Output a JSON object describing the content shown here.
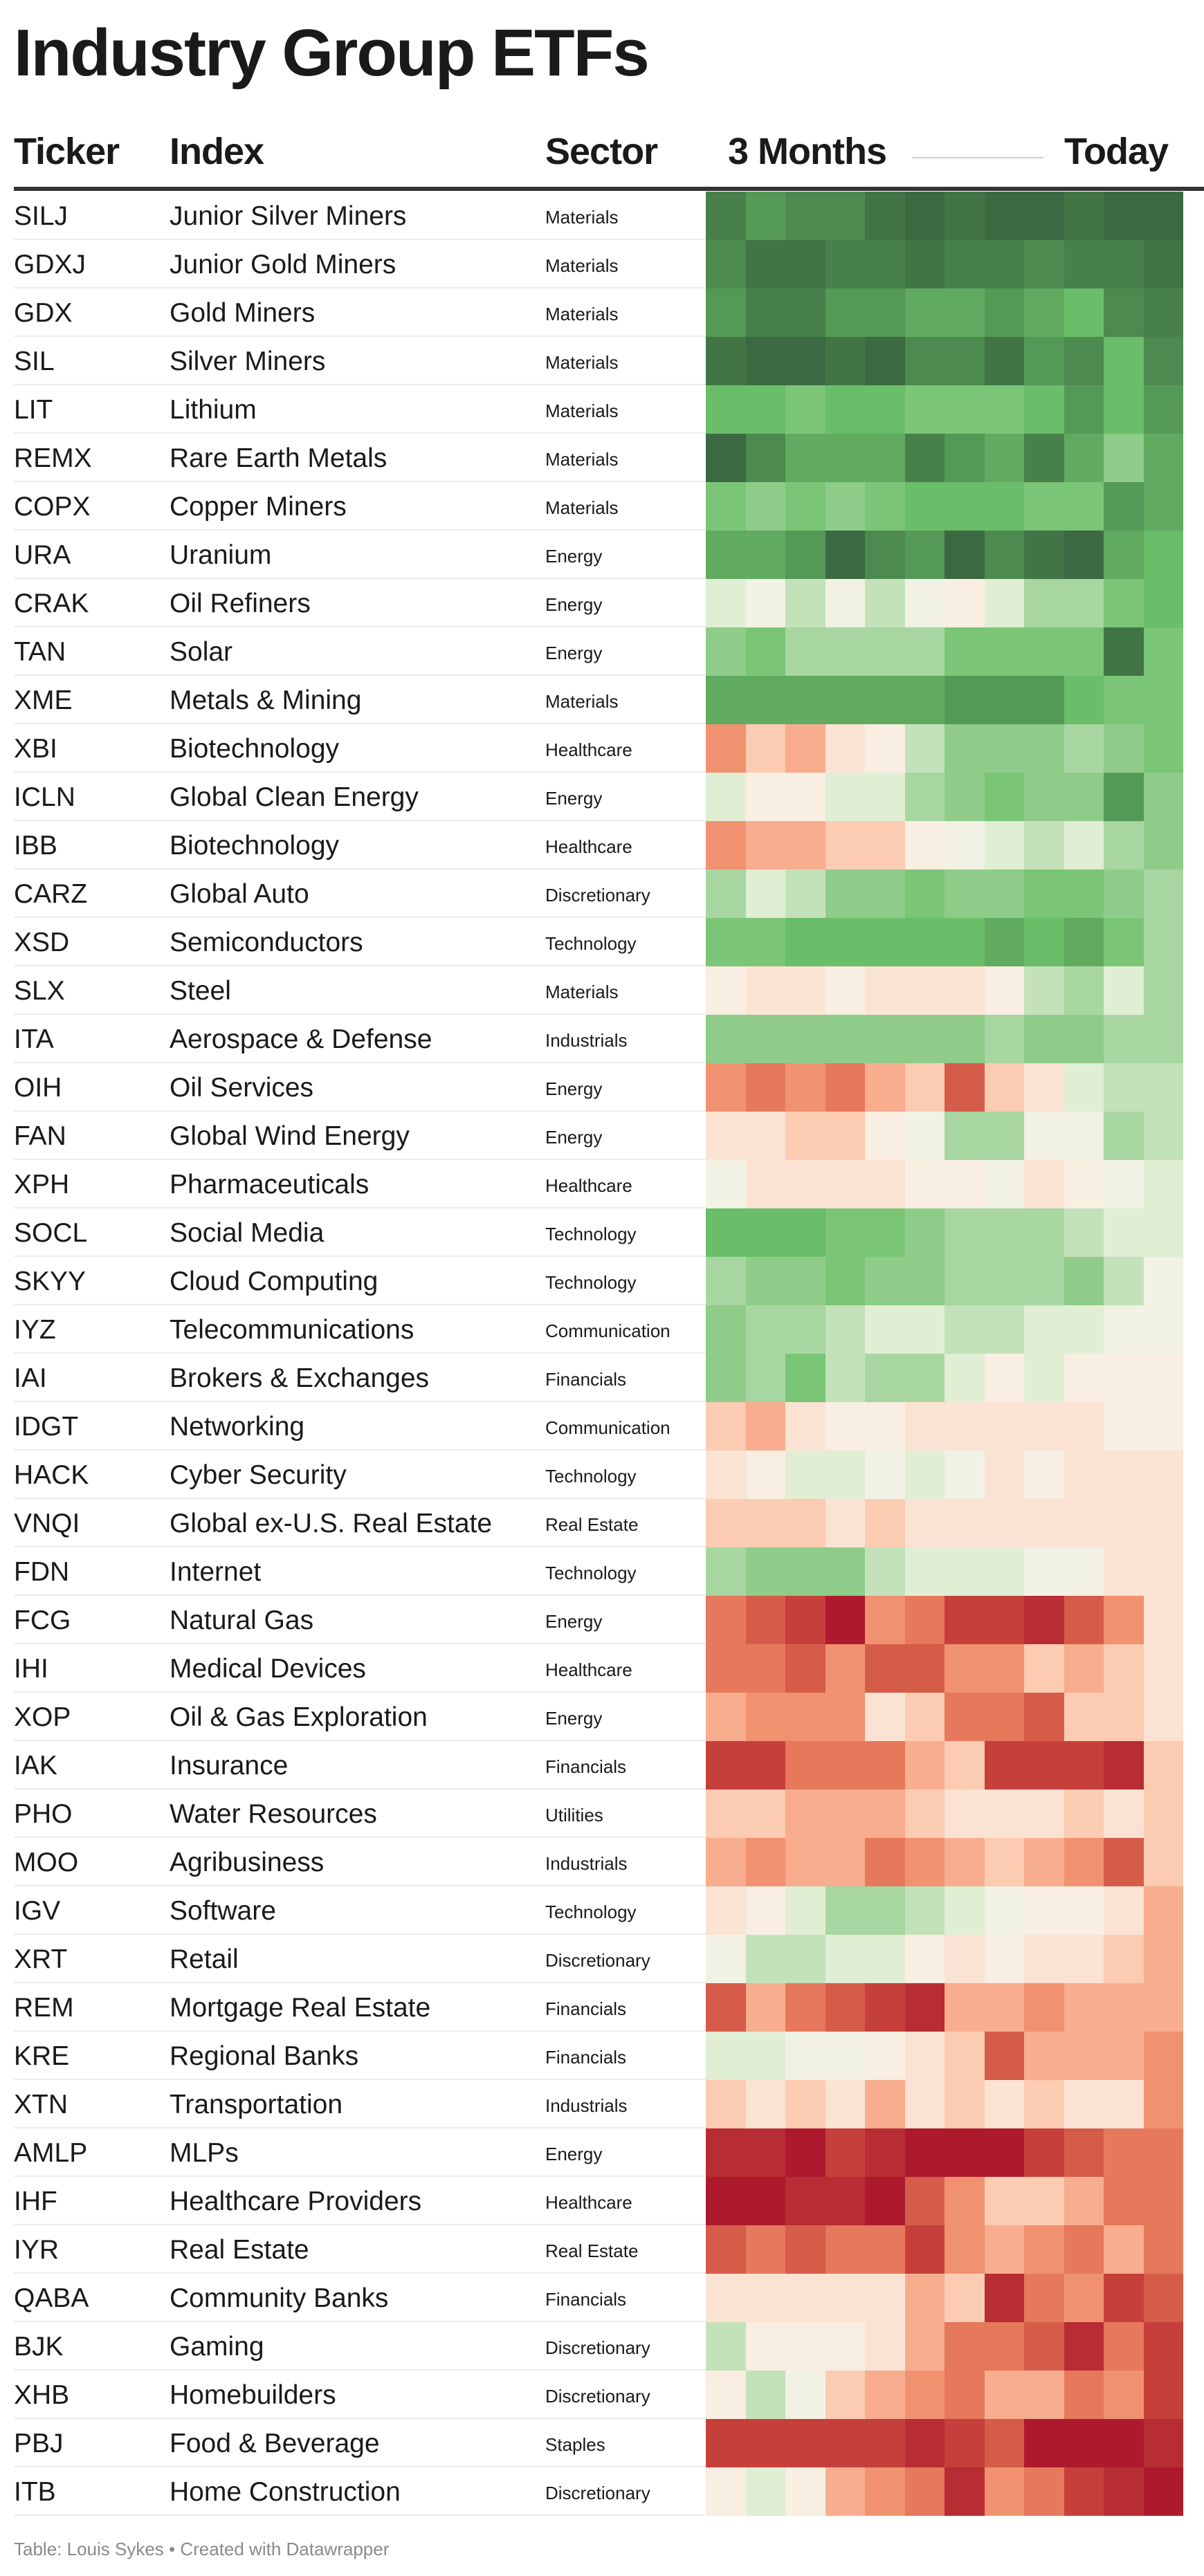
{
  "title": "Industry Group ETFs",
  "headers": {
    "ticker": "Ticker",
    "index": "Index",
    "sector": "Sector",
    "start": "3 Months",
    "end": "Today"
  },
  "footer": "Table: Louis Sykes • Created with Datawrapper",
  "chart_data": {
    "type": "heatmap",
    "title": "Industry Group ETFs",
    "x_range_label": [
      "3 Months",
      "Today"
    ],
    "periods": 12,
    "scale": "relative strength level, -12 (strong red) to 10 (strong green)",
    "palette": {
      "-12": "#ad1a2d",
      "-11": "#b72d33",
      "-10": "#c6403b",
      "-9": "#d65c4a",
      "-8": "#e6785c",
      "-7": "#f09270",
      "-6": "#f7ad8e",
      "-5": "#fbcbb2",
      "-4": "#fbe3d3",
      "-3": "#f8eee1",
      "-2": "#f1f2e3",
      "-1": "#e0eed4",
      "0": "#c4e2ba",
      "1": "#a8d6a1",
      "2": "#8fcc89",
      "3": "#7bc577",
      "4": "#6abd69",
      "5": "#60ab60",
      "6": "#559956",
      "7": "#4d8a4f",
      "8": "#47804b",
      "9": "#417545",
      "10": "#3b6a42"
    },
    "rows": [
      {
        "ticker": "SILJ",
        "index": "Junior Silver Miners",
        "sector": "Materials",
        "values": [
          8,
          6,
          7,
          7,
          9,
          10,
          9,
          10,
          10,
          9,
          10,
          10
        ]
      },
      {
        "ticker": "GDXJ",
        "index": "Junior Gold Miners",
        "sector": "Materials",
        "values": [
          7,
          9,
          9,
          8,
          8,
          9,
          8,
          8,
          7,
          8,
          8,
          9
        ]
      },
      {
        "ticker": "GDX",
        "index": "Gold Miners",
        "sector": "Materials",
        "values": [
          6,
          8,
          8,
          6,
          6,
          5,
          5,
          6,
          5,
          4,
          7,
          8
        ]
      },
      {
        "ticker": "SIL",
        "index": "Silver Miners",
        "sector": "Materials",
        "values": [
          9,
          10,
          10,
          9,
          10,
          7,
          7,
          9,
          6,
          7,
          4,
          7
        ]
      },
      {
        "ticker": "LIT",
        "index": "Lithium",
        "sector": "Materials",
        "values": [
          4,
          4,
          3,
          4,
          4,
          3,
          3,
          3,
          4,
          6,
          4,
          6
        ]
      },
      {
        "ticker": "REMX",
        "index": "Rare Earth Metals",
        "sector": "Materials",
        "values": [
          10,
          7,
          5,
          5,
          5,
          8,
          6,
          5,
          8,
          5,
          2,
          5
        ]
      },
      {
        "ticker": "COPX",
        "index": "Copper Miners",
        "sector": "Materials",
        "values": [
          3,
          2,
          3,
          2,
          3,
          4,
          4,
          4,
          3,
          3,
          6,
          5
        ]
      },
      {
        "ticker": "URA",
        "index": "Uranium",
        "sector": "Energy",
        "values": [
          5,
          5,
          6,
          10,
          7,
          6,
          10,
          7,
          9,
          10,
          5,
          4
        ]
      },
      {
        "ticker": "CRAK",
        "index": "Oil Refiners",
        "sector": "Energy",
        "values": [
          -1,
          -2,
          0,
          -2,
          0,
          -2,
          -3,
          -1,
          1,
          1,
          3,
          4
        ]
      },
      {
        "ticker": "TAN",
        "index": "Solar",
        "sector": "Energy",
        "values": [
          2,
          3,
          1,
          1,
          1,
          1,
          3,
          3,
          3,
          3,
          9,
          3
        ]
      },
      {
        "ticker": "XME",
        "index": "Metals & Mining",
        "sector": "Materials",
        "values": [
          5,
          5,
          5,
          5,
          5,
          5,
          6,
          6,
          6,
          4,
          3,
          3
        ]
      },
      {
        "ticker": "XBI",
        "index": "Biotechnology",
        "sector": "Healthcare",
        "values": [
          -7,
          -5,
          -6,
          -4,
          -3,
          0,
          2,
          2,
          2,
          1,
          2,
          3
        ]
      },
      {
        "ticker": "ICLN",
        "index": "Global Clean Energy",
        "sector": "Energy",
        "values": [
          -1,
          -3,
          -3,
          -1,
          -1,
          1,
          2,
          3,
          2,
          2,
          6,
          2
        ]
      },
      {
        "ticker": "IBB",
        "index": "Biotechnology",
        "sector": "Healthcare",
        "values": [
          -7,
          -6,
          -6,
          -5,
          -5,
          -3,
          -2,
          -1,
          0,
          -1,
          1,
          2
        ]
      },
      {
        "ticker": "CARZ",
        "index": "Global Auto",
        "sector": "Discretionary",
        "values": [
          1,
          -1,
          0,
          2,
          2,
          3,
          2,
          2,
          3,
          3,
          2,
          1
        ]
      },
      {
        "ticker": "XSD",
        "index": "Semiconductors",
        "sector": "Technology",
        "values": [
          3,
          3,
          4,
          4,
          4,
          4,
          4,
          5,
          4,
          5,
          3,
          1
        ]
      },
      {
        "ticker": "SLX",
        "index": "Steel",
        "sector": "Materials",
        "values": [
          -3,
          -4,
          -4,
          -3,
          -4,
          -4,
          -4,
          -3,
          0,
          1,
          -1,
          1
        ]
      },
      {
        "ticker": "ITA",
        "index": "Aerospace & Defense",
        "sector": "Industrials",
        "values": [
          2,
          2,
          2,
          2,
          2,
          2,
          2,
          1,
          2,
          2,
          1,
          1
        ]
      },
      {
        "ticker": "OIH",
        "index": "Oil Services",
        "sector": "Energy",
        "values": [
          -7,
          -8,
          -7,
          -8,
          -6,
          -5,
          -9,
          -5,
          -4,
          -1,
          0,
          0
        ]
      },
      {
        "ticker": "FAN",
        "index": "Global Wind Energy",
        "sector": "Energy",
        "values": [
          -4,
          -4,
          -5,
          -5,
          -3,
          -2,
          1,
          1,
          -2,
          -2,
          1,
          0
        ]
      },
      {
        "ticker": "XPH",
        "index": "Pharmaceuticals",
        "sector": "Healthcare",
        "values": [
          -2,
          -4,
          -4,
          -4,
          -4,
          -3,
          -3,
          -2,
          -4,
          -3,
          -2,
          -1
        ]
      },
      {
        "ticker": "SOCL",
        "index": "Social Media",
        "sector": "Technology",
        "values": [
          4,
          4,
          4,
          3,
          3,
          2,
          1,
          1,
          1,
          0,
          -1,
          -1
        ]
      },
      {
        "ticker": "SKYY",
        "index": "Cloud Computing",
        "sector": "Technology",
        "values": [
          1,
          2,
          2,
          3,
          2,
          2,
          1,
          1,
          1,
          2,
          0,
          -2
        ]
      },
      {
        "ticker": "IYZ",
        "index": "Telecommunications",
        "sector": "Communication",
        "values": [
          2,
          1,
          1,
          0,
          -1,
          -1,
          0,
          0,
          -1,
          -1,
          -2,
          -2
        ]
      },
      {
        "ticker": "IAI",
        "index": "Brokers & Exchanges",
        "sector": "Financials",
        "values": [
          2,
          1,
          3,
          0,
          1,
          1,
          -1,
          -3,
          -1,
          -3,
          -3,
          -3
        ]
      },
      {
        "ticker": "IDGT",
        "index": "Networking",
        "sector": "Communication",
        "values": [
          -5,
          -6,
          -4,
          -3,
          -3,
          -4,
          -4,
          -4,
          -4,
          -4,
          -3,
          -3
        ]
      },
      {
        "ticker": "HACK",
        "index": "Cyber Security",
        "sector": "Technology",
        "values": [
          -4,
          -3,
          -1,
          -1,
          -2,
          -1,
          -2,
          -4,
          -3,
          -4,
          -4,
          -4
        ]
      },
      {
        "ticker": "VNQI",
        "index": "Global ex-U.S. Real Estate",
        "sector": "Real Estate",
        "values": [
          -5,
          -5,
          -5,
          -4,
          -5,
          -4,
          -4,
          -4,
          -4,
          -4,
          -4,
          -4
        ]
      },
      {
        "ticker": "FDN",
        "index": "Internet",
        "sector": "Technology",
        "values": [
          1,
          2,
          2,
          2,
          0,
          -1,
          -1,
          -1,
          -2,
          -2,
          -4,
          -4
        ]
      },
      {
        "ticker": "FCG",
        "index": "Natural Gas",
        "sector": "Energy",
        "values": [
          -8,
          -9,
          -10,
          -12,
          -7,
          -8,
          -10,
          -10,
          -11,
          -9,
          -7,
          -4
        ]
      },
      {
        "ticker": "IHI",
        "index": "Medical Devices",
        "sector": "Healthcare",
        "values": [
          -8,
          -8,
          -9,
          -7,
          -9,
          -9,
          -7,
          -7,
          -5,
          -6,
          -5,
          -4
        ]
      },
      {
        "ticker": "XOP",
        "index": "Oil & Gas Exploration",
        "sector": "Energy",
        "values": [
          -6,
          -7,
          -7,
          -7,
          -4,
          -5,
          -8,
          -8,
          -9,
          -5,
          -5,
          -4
        ]
      },
      {
        "ticker": "IAK",
        "index": "Insurance",
        "sector": "Financials",
        "values": [
          -10,
          -10,
          -8,
          -8,
          -8,
          -6,
          -5,
          -10,
          -10,
          -10,
          -11,
          -5
        ]
      },
      {
        "ticker": "PHO",
        "index": "Water Resources",
        "sector": "Utilities",
        "values": [
          -5,
          -5,
          -6,
          -6,
          -6,
          -5,
          -4,
          -4,
          -4,
          -5,
          -4,
          -5
        ]
      },
      {
        "ticker": "MOO",
        "index": "Agribusiness",
        "sector": "Industrials",
        "values": [
          -6,
          -7,
          -6,
          -6,
          -8,
          -7,
          -6,
          -5,
          -6,
          -7,
          -9,
          -5
        ]
      },
      {
        "ticker": "IGV",
        "index": "Software",
        "sector": "Technology",
        "values": [
          -4,
          -3,
          -1,
          1,
          1,
          0,
          -1,
          -2,
          -3,
          -3,
          -4,
          -6
        ]
      },
      {
        "ticker": "XRT",
        "index": "Retail",
        "sector": "Discretionary",
        "values": [
          -2,
          0,
          0,
          -1,
          -1,
          -3,
          -4,
          -3,
          -4,
          -4,
          -5,
          -6
        ]
      },
      {
        "ticker": "REM",
        "index": "Mortgage Real Estate",
        "sector": "Financials",
        "values": [
          -9,
          -6,
          -8,
          -9,
          -10,
          -11,
          -6,
          -6,
          -7,
          -6,
          -6,
          -6
        ]
      },
      {
        "ticker": "KRE",
        "index": "Regional Banks",
        "sector": "Financials",
        "values": [
          -1,
          -1,
          -2,
          -2,
          -3,
          -4,
          -5,
          -9,
          -6,
          -6,
          -6,
          -7
        ]
      },
      {
        "ticker": "XTN",
        "index": "Transportation",
        "sector": "Industrials",
        "values": [
          -5,
          -4,
          -5,
          -4,
          -6,
          -4,
          -5,
          -4,
          -5,
          -4,
          -4,
          -7
        ]
      },
      {
        "ticker": "AMLP",
        "index": "MLPs",
        "sector": "Energy",
        "values": [
          -11,
          -11,
          -12,
          -10,
          -11,
          -12,
          -12,
          -12,
          -10,
          -9,
          -8,
          -8
        ]
      },
      {
        "ticker": "IHF",
        "index": "Healthcare Providers",
        "sector": "Healthcare",
        "values": [
          -12,
          -12,
          -11,
          -11,
          -12,
          -9,
          -7,
          -5,
          -5,
          -6,
          -8,
          -8
        ]
      },
      {
        "ticker": "IYR",
        "index": "Real Estate",
        "sector": "Real Estate",
        "values": [
          -9,
          -8,
          -9,
          -8,
          -8,
          -10,
          -7,
          -6,
          -7,
          -8,
          -6,
          -8
        ]
      },
      {
        "ticker": "QABA",
        "index": "Community Banks",
        "sector": "Financials",
        "values": [
          -4,
          -4,
          -4,
          -4,
          -4,
          -6,
          -5,
          -11,
          -8,
          -7,
          -10,
          -9
        ]
      },
      {
        "ticker": "BJK",
        "index": "Gaming",
        "sector": "Discretionary",
        "values": [
          0,
          -3,
          -3,
          -3,
          -4,
          -6,
          -8,
          -8,
          -9,
          -11,
          -8,
          -10
        ]
      },
      {
        "ticker": "XHB",
        "index": "Homebuilders",
        "sector": "Discretionary",
        "values": [
          -3,
          0,
          -2,
          -5,
          -6,
          -7,
          -8,
          -6,
          -6,
          -8,
          -7,
          -10
        ]
      },
      {
        "ticker": "PBJ",
        "index": "Food & Beverage",
        "sector": "Staples",
        "values": [
          -10,
          -10,
          -10,
          -10,
          -10,
          -11,
          -10,
          -9,
          -12,
          -12,
          -12,
          -11
        ]
      },
      {
        "ticker": "ITB",
        "index": "Home Construction",
        "sector": "Discretionary",
        "values": [
          -3,
          -1,
          -3,
          -6,
          -7,
          -8,
          -11,
          -7,
          -8,
          -10,
          -11,
          -12
        ]
      }
    ]
  }
}
